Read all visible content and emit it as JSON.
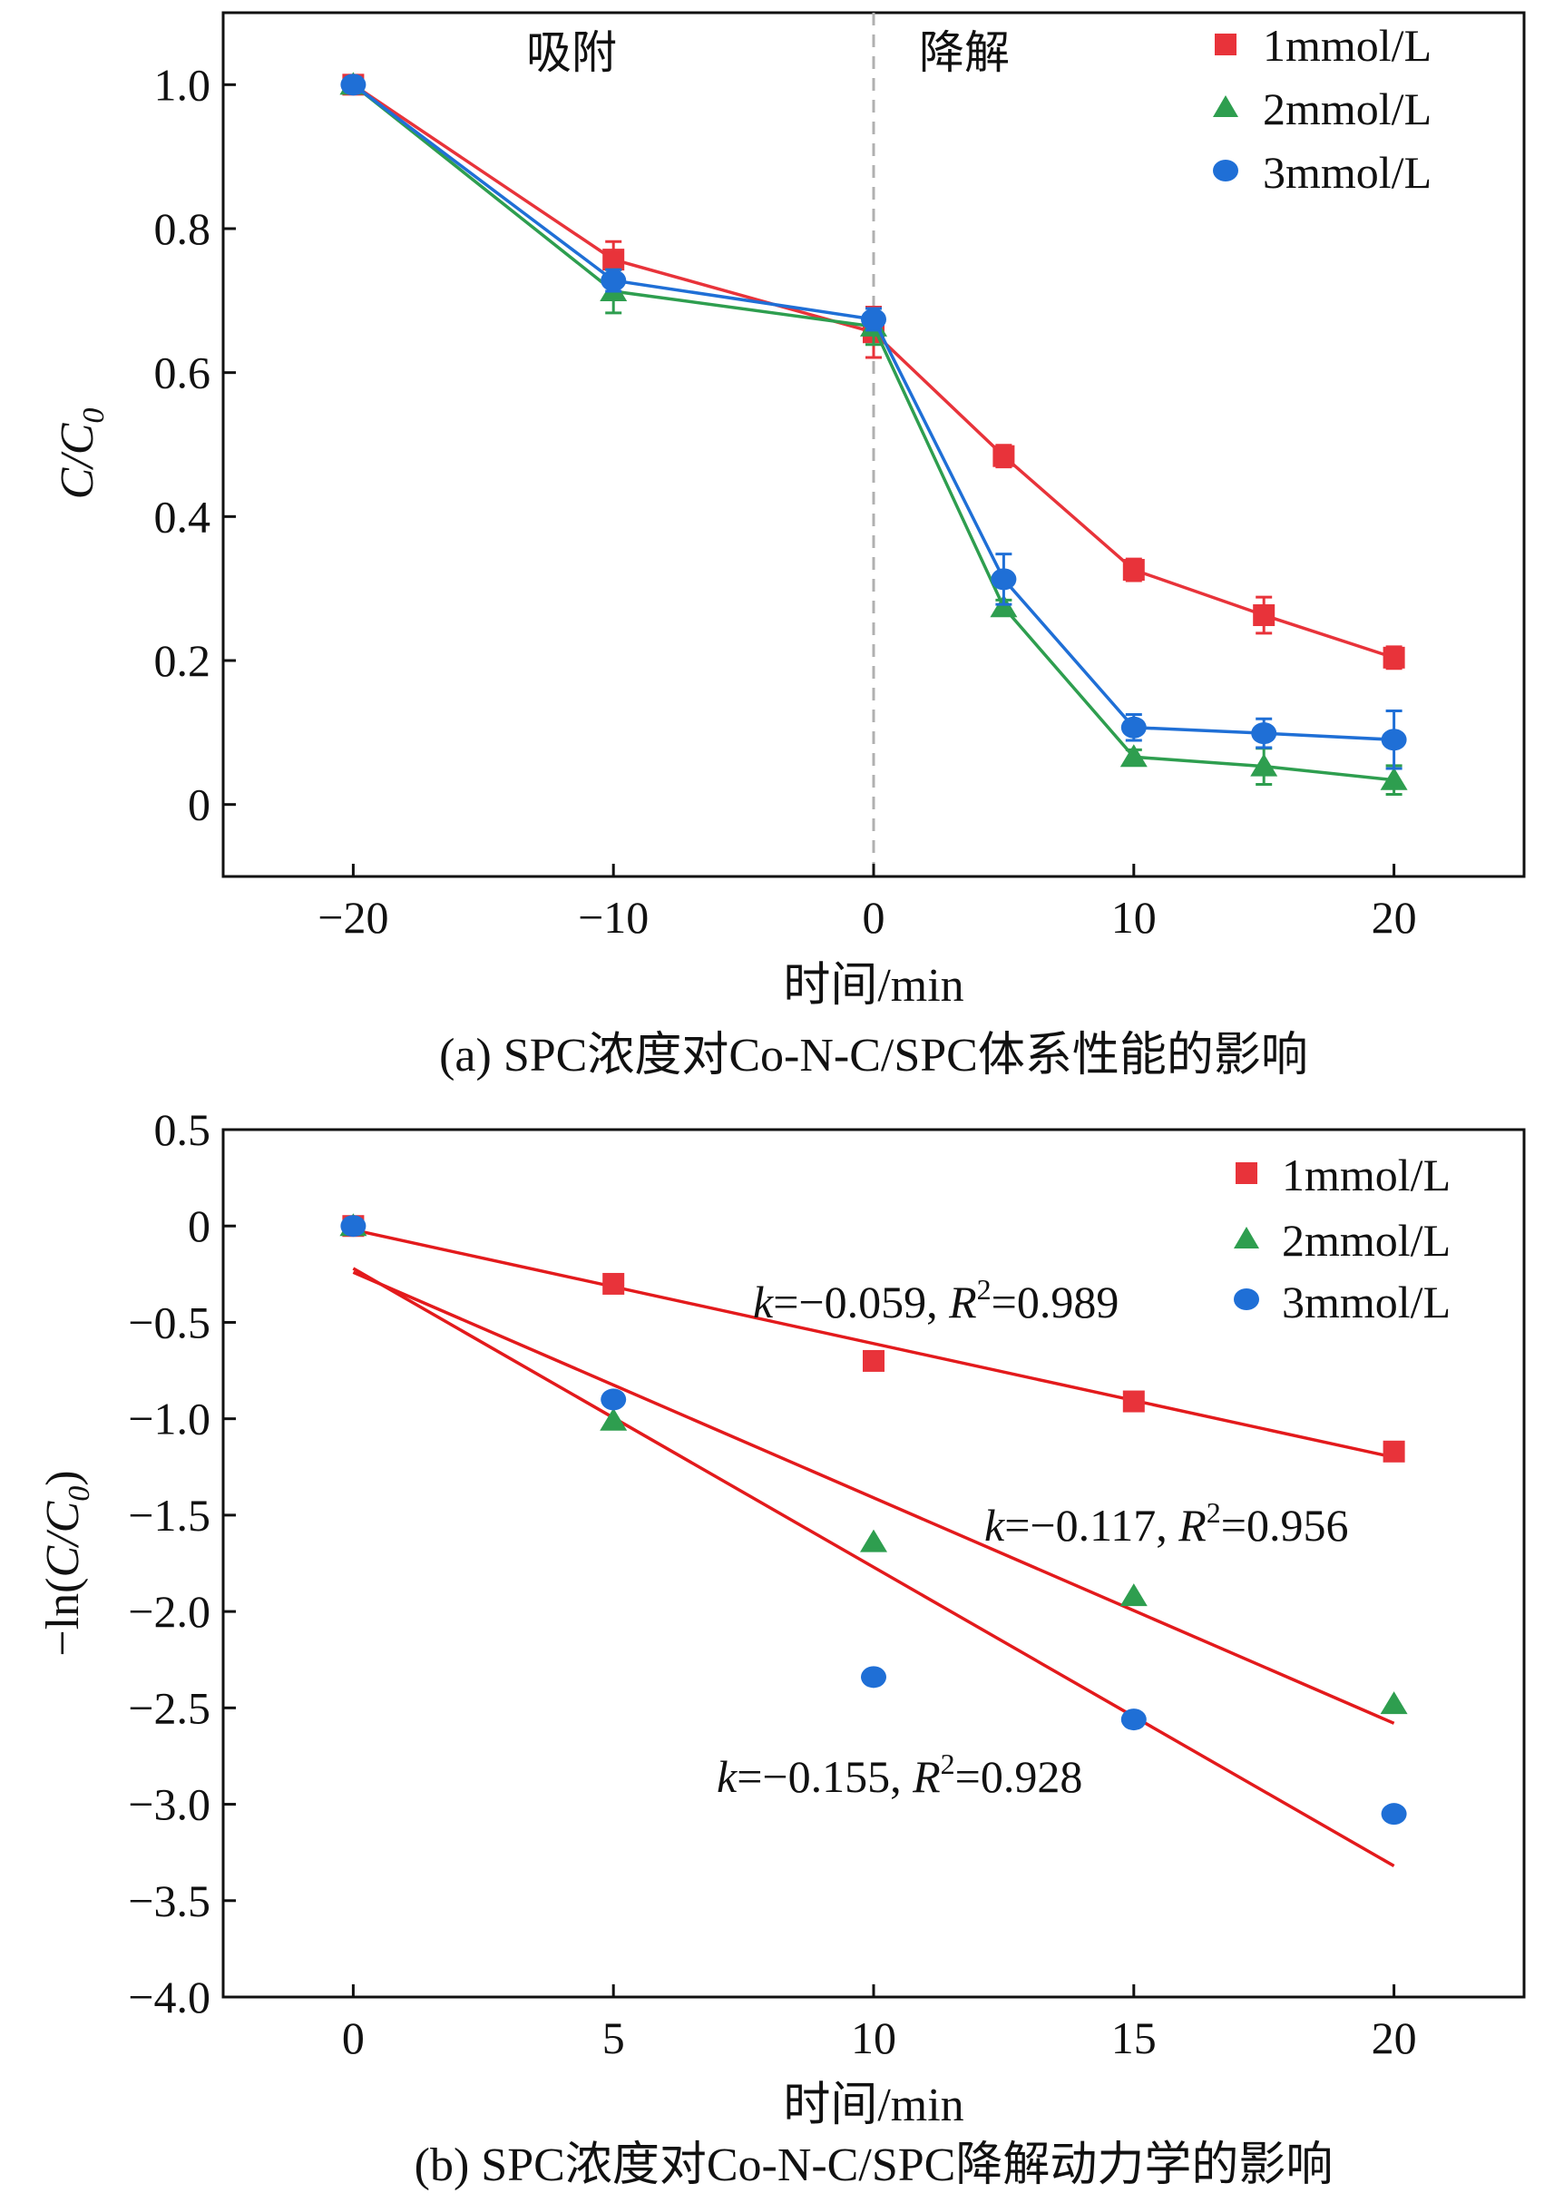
{
  "colors": {
    "c1": "#e8333a",
    "c2": "#2e9e4f",
    "c3": "#1f6fd6",
    "axis": "#111111",
    "fit": "#e31a1c",
    "divider": "#b0b0b0"
  },
  "chart_data": [
    {
      "type": "line",
      "panel": "a",
      "xlabel": "时间/min",
      "ylabel_main": "C/C",
      "ylabel_sub": "0",
      "caption": "(a) SPC浓度对Co-N-C/SPC体系性能的影响",
      "xlim": [
        -25,
        25
      ],
      "ylim": [
        -0.1,
        1.1
      ],
      "x_ticks": [
        -20,
        -10,
        0,
        10,
        20
      ],
      "x_tick_labels": [
        "−20",
        "−10",
        "0",
        "10",
        "20"
      ],
      "y_ticks": [
        0,
        0.2,
        0.4,
        0.6,
        0.8,
        1.0
      ],
      "y_tick_labels": [
        "0",
        "0.2",
        "0.4",
        "0.6",
        "0.8",
        "1.0"
      ],
      "region_labels": [
        "吸附",
        "降解"
      ],
      "divider_x": 0,
      "x": [
        -20,
        -10,
        0,
        5,
        10,
        15,
        20
      ],
      "series": [
        {
          "name": "1mmol/L",
          "marker": "square",
          "values": [
            1.0,
            0.757,
            0.656,
            0.484,
            0.326,
            0.263,
            0.204
          ],
          "errors": [
            0.01,
            0.025,
            0.035,
            0.015,
            0.015,
            0.025,
            0.015
          ]
        },
        {
          "name": "2mmol/L",
          "marker": "triangle",
          "values": [
            1.0,
            0.713,
            0.664,
            0.274,
            0.066,
            0.053,
            0.034
          ],
          "errors": [
            0.01,
            0.03,
            0.025,
            0.01,
            0.01,
            0.025,
            0.02
          ]
        },
        {
          "name": "3mmol/L",
          "marker": "circle",
          "values": [
            1.0,
            0.728,
            0.674,
            0.313,
            0.107,
            0.099,
            0.09
          ],
          "errors": [
            0.01,
            0.015,
            0.015,
            0.035,
            0.018,
            0.02,
            0.04
          ]
        }
      ],
      "legend_position": "top-right"
    },
    {
      "type": "scatter",
      "panel": "b",
      "xlabel": "时间/min",
      "ylabel_main": "C/C",
      "ylabel_prefix": "−ln(",
      "ylabel_sub": "0",
      "ylabel_suffix": ")",
      "caption": "(b) SPC浓度对Co-N-C/SPC降解动力学的影响",
      "xlim": [
        -2.5,
        22.5
      ],
      "ylim": [
        -4.0,
        0.5
      ],
      "x_ticks": [
        0,
        5,
        10,
        15,
        20
      ],
      "x_tick_labels": [
        "0",
        "5",
        "10",
        "15",
        "20"
      ],
      "y_ticks": [
        0.5,
        0,
        -0.5,
        -1.0,
        -1.5,
        -2.0,
        -2.5,
        -3.0,
        -3.5,
        -4.0
      ],
      "y_tick_labels": [
        "0.5",
        "0",
        "−0.5",
        "−1.0",
        "−1.5",
        "−2.0",
        "−2.5",
        "−3.0",
        "−3.5",
        "−4.0"
      ],
      "x": [
        0,
        5,
        10,
        15,
        20
      ],
      "series": [
        {
          "name": "1mmol/L",
          "marker": "square",
          "values": [
            0,
            -0.3,
            -0.7,
            -0.91,
            -1.17
          ],
          "fit": {
            "slope": -0.059,
            "intercept": -0.02
          }
        },
        {
          "name": "2mmol/L",
          "marker": "triangle",
          "values": [
            0,
            -1.01,
            -1.64,
            -1.92,
            -2.48
          ],
          "fit": {
            "slope": -0.117,
            "intercept": -0.24
          }
        },
        {
          "name": "3mmol/L",
          "marker": "circle",
          "values": [
            0,
            -0.9,
            -2.34,
            -2.56,
            -3.05
          ],
          "fit": {
            "slope": -0.155,
            "intercept": -0.22
          }
        }
      ],
      "annotations": [
        {
          "k": "−0.059",
          "r2": "0.989"
        },
        {
          "k": "−0.117",
          "r2": "0.956"
        },
        {
          "k": "−0.155",
          "r2": "0.928"
        }
      ],
      "annotation_k_label": "k",
      "annotation_r_label": "R",
      "annotation_r_power": "2",
      "legend_position": "top-right"
    }
  ]
}
